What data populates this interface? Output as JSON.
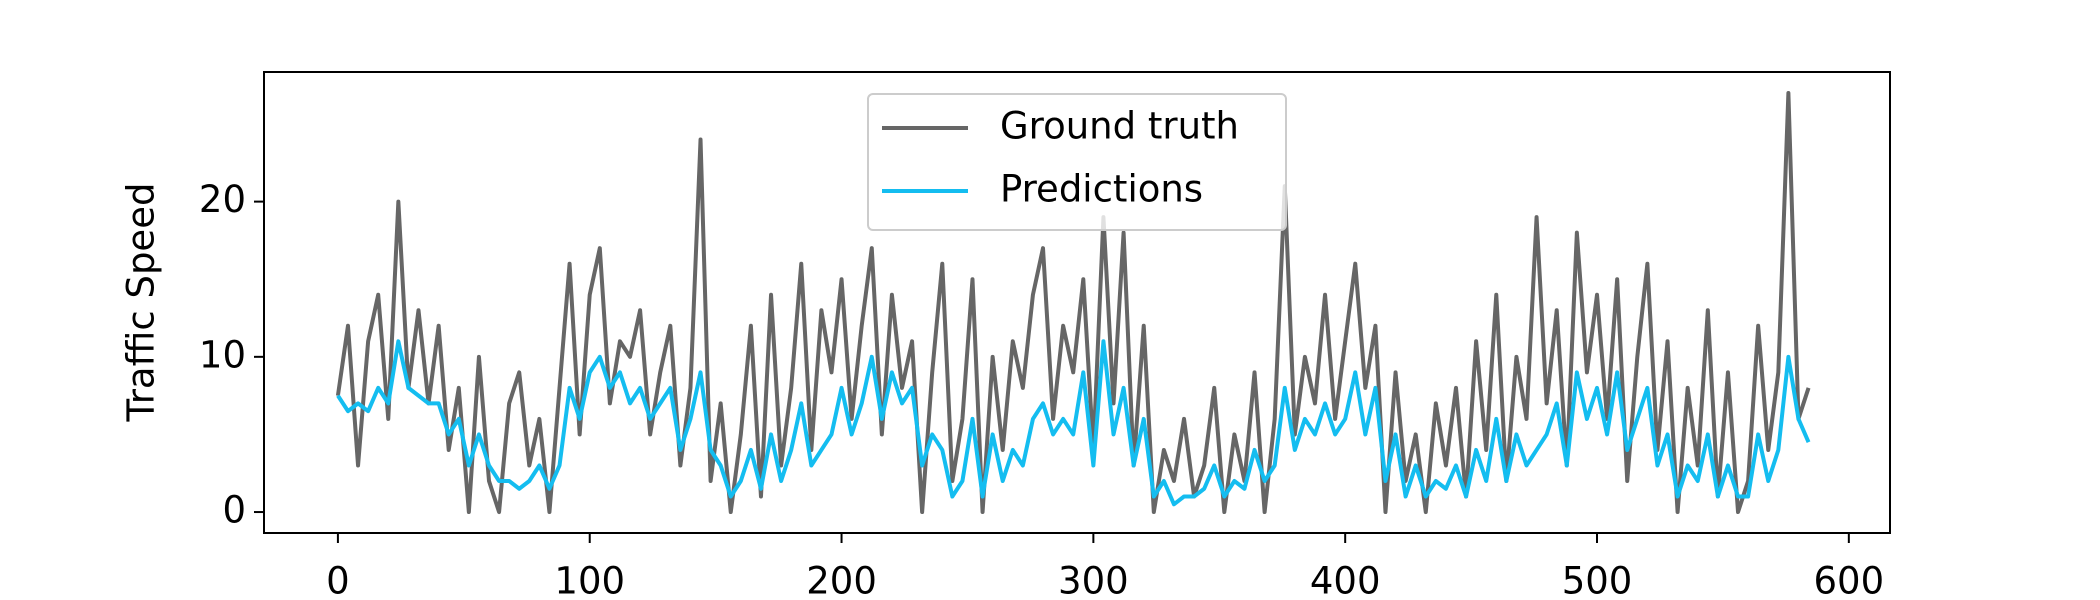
{
  "chart_data": {
    "type": "line",
    "ylabel": "Traffic Speed",
    "x": [
      0,
      4,
      8,
      12,
      16,
      20,
      24,
      28,
      32,
      36,
      40,
      44,
      48,
      52,
      56,
      60,
      64,
      68,
      72,
      76,
      80,
      84,
      88,
      92,
      96,
      100,
      104,
      108,
      112,
      116,
      120,
      124,
      128,
      132,
      136,
      140,
      144,
      148,
      152,
      156,
      160,
      164,
      168,
      172,
      176,
      180,
      184,
      188,
      192,
      196,
      200,
      204,
      208,
      212,
      216,
      220,
      224,
      228,
      232,
      236,
      240,
      244,
      248,
      252,
      256,
      260,
      264,
      268,
      272,
      276,
      280,
      284,
      288,
      292,
      296,
      300,
      304,
      308,
      312,
      316,
      320,
      324,
      328,
      332,
      336,
      340,
      344,
      348,
      352,
      356,
      360,
      364,
      368,
      372,
      376,
      380,
      384,
      388,
      392,
      396,
      400,
      404,
      408,
      412,
      416,
      420,
      424,
      428,
      432,
      436,
      440,
      444,
      448,
      452,
      456,
      460,
      464,
      468,
      472,
      476,
      480,
      484,
      488,
      492,
      496,
      500,
      504,
      508,
      512,
      516,
      520,
      524,
      528,
      532,
      536,
      540,
      544,
      548,
      552,
      556,
      560,
      564,
      568,
      572,
      576,
      580,
      584
    ],
    "series": [
      {
        "name": "Ground truth",
        "color": "#666666",
        "values": [
          7.5,
          12,
          3,
          11,
          14,
          6,
          20,
          8,
          13,
          7,
          12,
          4,
          8,
          0,
          10,
          2,
          0,
          7,
          9,
          3,
          6,
          0,
          8,
          16,
          5,
          14,
          17,
          7,
          11,
          10,
          13,
          5,
          9,
          12,
          3,
          8,
          24,
          2,
          7,
          0,
          5,
          12,
          1,
          14,
          3,
          8,
          16,
          4,
          13,
          9,
          15,
          6,
          12,
          17,
          5,
          14,
          8,
          11,
          0,
          9,
          16,
          2,
          6,
          15,
          0,
          10,
          4,
          11,
          8,
          14,
          17,
          6,
          12,
          9,
          15,
          4,
          19,
          7,
          18,
          3,
          12,
          0,
          4,
          2,
          6,
          1,
          3,
          8,
          0,
          5,
          2,
          9,
          0,
          6,
          21,
          5,
          10,
          7,
          14,
          6,
          11,
          16,
          8,
          12,
          0,
          9,
          2,
          5,
          0,
          7,
          3,
          8,
          1,
          11,
          4,
          14,
          2,
          10,
          6,
          19,
          7,
          13,
          3,
          18,
          9,
          14,
          6,
          15,
          2,
          10,
          16,
          4,
          11,
          0,
          8,
          3,
          13,
          1,
          9,
          0,
          2,
          12,
          4,
          9,
          27,
          6,
          8
        ]
      },
      {
        "name": "Predictions",
        "color": "#14bdf0",
        "values": [
          7.5,
          6.5,
          7,
          6.5,
          8,
          7,
          11,
          8,
          7.5,
          7,
          7,
          5,
          6,
          3,
          5,
          3,
          2,
          2,
          1.5,
          2,
          3,
          1.5,
          3,
          8,
          6,
          9,
          10,
          8,
          9,
          7,
          8,
          6,
          7,
          8,
          4,
          6,
          9,
          4,
          3,
          1,
          2,
          4,
          1.5,
          5,
          2,
          4,
          7,
          3,
          4,
          5,
          8,
          5,
          7,
          10,
          6,
          9,
          7,
          8,
          3,
          5,
          4,
          1,
          2,
          6,
          1,
          5,
          2,
          4,
          3,
          6,
          7,
          5,
          6,
          5,
          9,
          3,
          11,
          5,
          8,
          3,
          6,
          1,
          2,
          0.5,
          1,
          1,
          1.5,
          3,
          1,
          2,
          1.5,
          4,
          2,
          3,
          8,
          4,
          6,
          5,
          7,
          5,
          6,
          9,
          5,
          8,
          2,
          5,
          1,
          3,
          1,
          2,
          1.5,
          3,
          1,
          4,
          2,
          6,
          2,
          5,
          3,
          4,
          5,
          7,
          3,
          9,
          6,
          8,
          5,
          9,
          4,
          6,
          8,
          3,
          5,
          1,
          3,
          2,
          5,
          1,
          3,
          1,
          1,
          5,
          2,
          4,
          10,
          6,
          4.5
        ]
      }
    ],
    "xlim": [
      -29.35,
      616.35
    ],
    "xticks": [
      0,
      100,
      200,
      300,
      400,
      500,
      600
    ],
    "ylim": [
      -1.35,
      28.35
    ],
    "yticks": [
      0,
      10,
      20
    ],
    "legend": "upper center"
  }
}
